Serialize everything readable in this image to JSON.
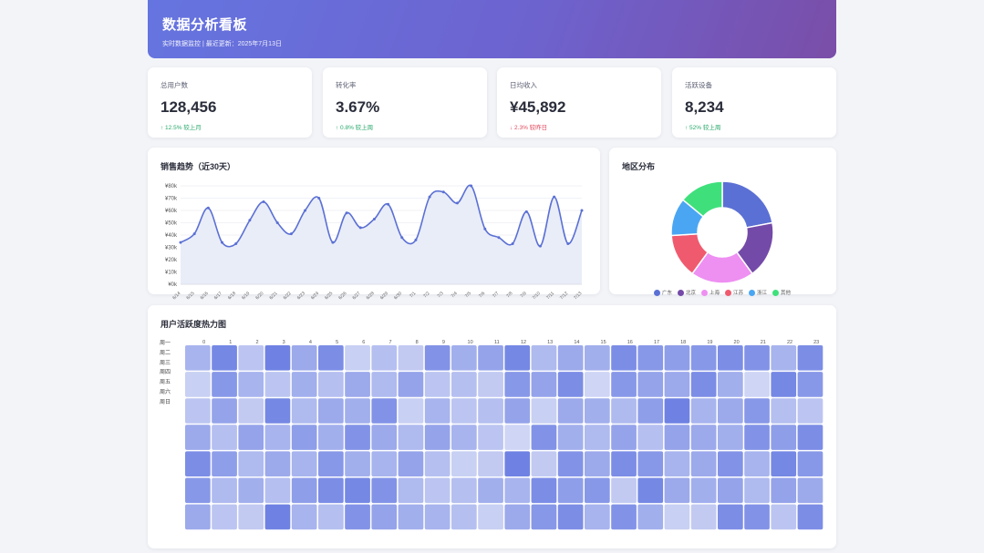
{
  "header": {
    "title": "数据分析看板",
    "subtitle": "实时数据监控 | 最近更新：2025年7月13日"
  },
  "stats": [
    {
      "label": "总用户数",
      "value": "128,456",
      "change": "↑ 12.5% 较上月",
      "dir": "up"
    },
    {
      "label": "转化率",
      "value": "3.67%",
      "change": "↑ 0.8% 较上周",
      "dir": "up"
    },
    {
      "label": "日均收入",
      "value": "¥45,892",
      "change": "↓ 2.3% 较昨日",
      "dir": "down"
    },
    {
      "label": "活跃设备",
      "value": "8,234",
      "change": "↑ 52% 较上周",
      "dir": "up"
    }
  ],
  "line_panel": {
    "title": "销售趋势（近30天）"
  },
  "pie_panel": {
    "title": "地区分布"
  },
  "heat_panel": {
    "title": "用户活跃度热力图"
  },
  "colors": {
    "accent": "#5b70d4",
    "area": "#e9edf8"
  },
  "chart_data": [
    {
      "type": "line",
      "x": [
        "6/14",
        "6/15",
        "6/16",
        "6/17",
        "6/18",
        "6/19",
        "6/20",
        "6/21",
        "6/22",
        "6/23",
        "6/24",
        "6/25",
        "6/26",
        "6/27",
        "6/28",
        "6/29",
        "6/30",
        "7/1",
        "7/2",
        "7/3",
        "7/4",
        "7/5",
        "7/6",
        "7/7",
        "7/8",
        "7/9",
        "7/10",
        "7/11",
        "7/12",
        "7/13"
      ],
      "series": [
        {
          "values": [
            34,
            41,
            62,
            34,
            33,
            52,
            67,
            50,
            41,
            60,
            70,
            34,
            58,
            46,
            53,
            65,
            38,
            36,
            71,
            75,
            66,
            80,
            45,
            38,
            33,
            59,
            31,
            71,
            33,
            60
          ]
        }
      ],
      "yticks": [
        "¥0k",
        "¥10k",
        "¥20k",
        "¥30k",
        "¥40k",
        "¥50k",
        "¥60k",
        "¥70k",
        "¥80k"
      ],
      "ylim": [
        0,
        80
      ],
      "grid": true
    },
    {
      "type": "pie",
      "labels": [
        "广东",
        "北京",
        "上海",
        "江苏",
        "浙江",
        "其他"
      ],
      "values": [
        22,
        18,
        20,
        14,
        12,
        14
      ],
      "colors": [
        "#5b70d4",
        "#744aa8",
        "#ee8ff2",
        "#f05a6e",
        "#4aa6f2",
        "#3fe07c"
      ],
      "legend": "bottom"
    },
    {
      "type": "heatmap",
      "x": [
        "0",
        "1",
        "2",
        "3",
        "4",
        "5",
        "6",
        "7",
        "8",
        "9",
        "10",
        "11",
        "12",
        "13",
        "14",
        "15",
        "16",
        "17",
        "18",
        "19",
        "20",
        "21",
        "22",
        "23"
      ],
      "y": [
        "周一",
        "周二",
        "周三",
        "周四",
        "周五",
        "周六",
        "周日"
      ],
      "values": [
        [
          0.45,
          0.85,
          0.3,
          0.9,
          0.55,
          0.8,
          0.2,
          0.35,
          0.25,
          0.75,
          0.5,
          0.6,
          0.85,
          0.4,
          0.55,
          0.5,
          0.8,
          0.7,
          0.65,
          0.7,
          0.8,
          0.75,
          0.45,
          0.8
        ],
        [
          0.2,
          0.7,
          0.45,
          0.3,
          0.5,
          0.35,
          0.55,
          0.4,
          0.6,
          0.3,
          0.35,
          0.25,
          0.7,
          0.6,
          0.8,
          0.15,
          0.7,
          0.6,
          0.55,
          0.8,
          0.5,
          0.15,
          0.85,
          0.7
        ],
        [
          0.3,
          0.6,
          0.25,
          0.85,
          0.4,
          0.55,
          0.5,
          0.75,
          0.2,
          0.45,
          0.3,
          0.35,
          0.6,
          0.2,
          0.55,
          0.5,
          0.4,
          0.65,
          0.9,
          0.45,
          0.55,
          0.7,
          0.35,
          0.3
        ],
        [
          0.55,
          0.35,
          0.6,
          0.45,
          0.65,
          0.5,
          0.75,
          0.55,
          0.4,
          0.6,
          0.45,
          0.3,
          0.15,
          0.75,
          0.5,
          0.4,
          0.6,
          0.35,
          0.6,
          0.55,
          0.5,
          0.75,
          0.65,
          0.8
        ],
        [
          0.8,
          0.65,
          0.4,
          0.55,
          0.45,
          0.7,
          0.5,
          0.45,
          0.6,
          0.35,
          0.2,
          0.25,
          0.9,
          0.25,
          0.75,
          0.55,
          0.8,
          0.7,
          0.45,
          0.55,
          0.75,
          0.45,
          0.85,
          0.7
        ],
        [
          0.7,
          0.4,
          0.5,
          0.35,
          0.65,
          0.8,
          0.85,
          0.75,
          0.4,
          0.3,
          0.35,
          0.5,
          0.45,
          0.8,
          0.65,
          0.7,
          0.25,
          0.85,
          0.55,
          0.5,
          0.6,
          0.4,
          0.6,
          0.55
        ],
        [
          0.55,
          0.3,
          0.25,
          0.9,
          0.45,
          0.35,
          0.75,
          0.6,
          0.5,
          0.45,
          0.35,
          0.2,
          0.55,
          0.7,
          0.8,
          0.45,
          0.75,
          0.5,
          0.2,
          0.25,
          0.8,
          0.75,
          0.3,
          0.8
        ]
      ]
    }
  ]
}
